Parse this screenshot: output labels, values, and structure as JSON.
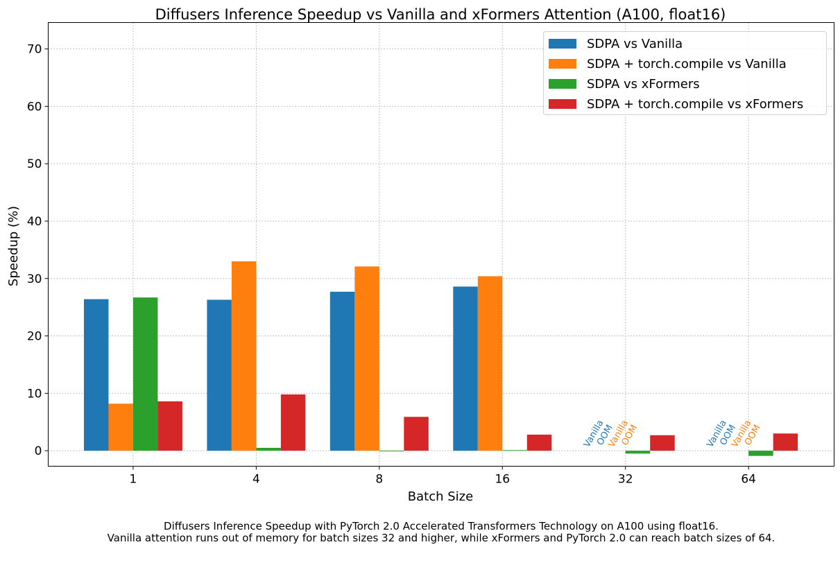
{
  "chart_data": {
    "type": "bar",
    "title": "Diffusers Inference Speedup vs Vanilla and xFormers Attention (A100, float16)",
    "xlabel": "Batch Size",
    "ylabel": "Speedup (%)",
    "categories": [
      "1",
      "4",
      "8",
      "16",
      "32",
      "64"
    ],
    "ylim": [
      -2.7,
      74.6
    ],
    "yticks": [
      0,
      10,
      20,
      30,
      40,
      50,
      60,
      70
    ],
    "grid": true,
    "legend_position": "top-right",
    "series": [
      {
        "name": "SDPA vs Vanilla",
        "color": "#1f77b4",
        "values": [
          26.4,
          26.3,
          27.7,
          28.6,
          null,
          null
        ]
      },
      {
        "name": "SDPA + torch.compile vs Vanilla",
        "color": "#ff7f0e",
        "values": [
          8.2,
          33.0,
          32.1,
          30.4,
          null,
          null
        ]
      },
      {
        "name": "SDPA vs xFormers",
        "color": "#2ca02c",
        "values": [
          26.7,
          0.5,
          -0.1,
          0.1,
          -0.5,
          -0.9
        ]
      },
      {
        "name": "SDPA + torch.compile vs xFormers",
        "color": "#d62728",
        "values": [
          8.6,
          9.8,
          5.9,
          2.8,
          2.7,
          3.0
        ]
      }
    ],
    "annotations": [
      {
        "text": "Vanilla\nOOM",
        "category": "32",
        "series": 0
      },
      {
        "text": "Vanilla\nOOM",
        "category": "32",
        "series": 1
      },
      {
        "text": "Vanilla\nOOM",
        "category": "64",
        "series": 0
      },
      {
        "text": "Vanilla\nOOM",
        "category": "64",
        "series": 1
      }
    ],
    "caption": [
      "Diffusers Inference Speedup with PyTorch 2.0 Accelerated Transformers Technology on A100 using float16.",
      "Vanilla attention runs out of memory for batch sizes 32 and higher, while xFormers and PyTorch 2.0 can reach batch sizes of 64."
    ]
  }
}
